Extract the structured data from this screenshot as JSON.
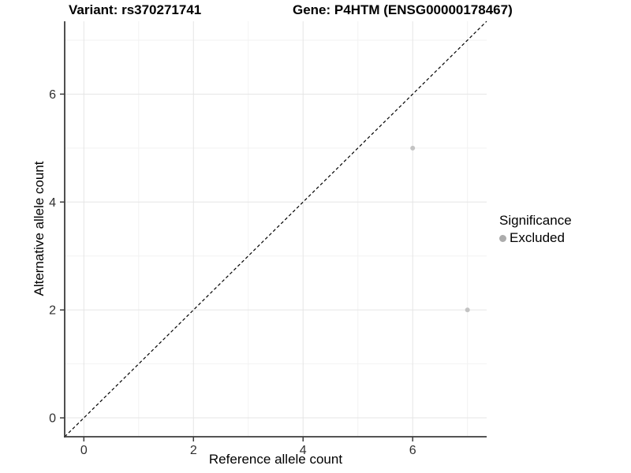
{
  "chart_data": {
    "type": "scatter",
    "title_variant": "Variant: rs370271741",
    "title_gene": "Gene: P4HTM (ENSG00000178467)",
    "xlabel": "Reference allele count",
    "ylabel": "Alternative allele count",
    "xlim": [
      -0.35,
      7.35
    ],
    "ylim": [
      -0.35,
      7.35
    ],
    "xticks": [
      0,
      2,
      4,
      6
    ],
    "yticks": [
      0,
      2,
      4,
      6
    ],
    "xminor": [
      1,
      3,
      5,
      7
    ],
    "yminor": [
      1,
      3,
      5,
      7
    ],
    "grid": "major+minor",
    "identity_line": {
      "type": "abline",
      "slope": 1,
      "intercept": 0,
      "style": "dashed",
      "color": "#000000"
    },
    "series": [
      {
        "name": "Excluded",
        "color": "#C3C3C3",
        "points": [
          {
            "x": 6,
            "y": 5
          },
          {
            "x": 7,
            "y": 2
          }
        ]
      }
    ],
    "legend": {
      "title": "Significance",
      "position": "right",
      "items": [
        {
          "label": "Excluded",
          "color": "#ACACAC",
          "marker": "circle"
        }
      ]
    }
  },
  "colors": {
    "background": "#FFFFFF",
    "grid_major": "#E5E5E5",
    "grid_minor": "#F2F2F2",
    "axis_line": "#3C3C3C",
    "tick_mark": "#3C3C3C",
    "tick_label": "#303030"
  }
}
